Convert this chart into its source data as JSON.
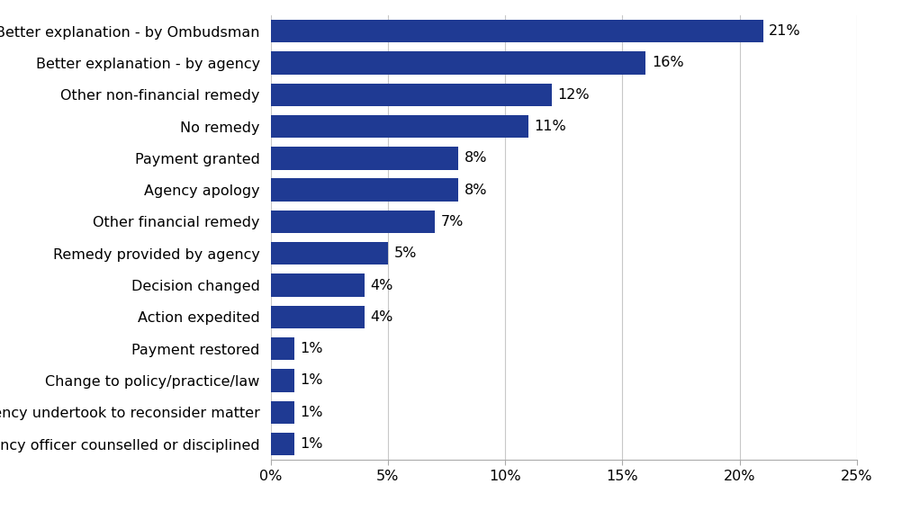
{
  "categories": [
    "Agency officer counselled or disciplined",
    "Agency undertook to reconsider matter",
    "Change to policy/practice/law",
    "Payment restored",
    "Action expedited",
    "Decision changed",
    "Remedy provided by agency",
    "Other financial remedy",
    "Agency apology",
    "Payment granted",
    "No remedy",
    "Other non-financial remedy",
    "Better explanation - by agency",
    "Better explanation - by Ombudsman"
  ],
  "values": [
    1,
    1,
    1,
    1,
    4,
    4,
    5,
    7,
    8,
    8,
    11,
    12,
    16,
    21
  ],
  "bar_color": "#1f3a93",
  "label_color": "#000000",
  "background_color": "#ffffff",
  "xlim": [
    0,
    25
  ],
  "xticks": [
    0,
    5,
    10,
    15,
    20,
    25
  ],
  "xticklabels": [
    "0%",
    "5%",
    "10%",
    "15%",
    "20%",
    "25%"
  ],
  "bar_height": 0.72,
  "label_fontsize": 11.5,
  "tick_fontsize": 11.5,
  "value_fontsize": 11.5,
  "grid_color": "#c8c8c8"
}
